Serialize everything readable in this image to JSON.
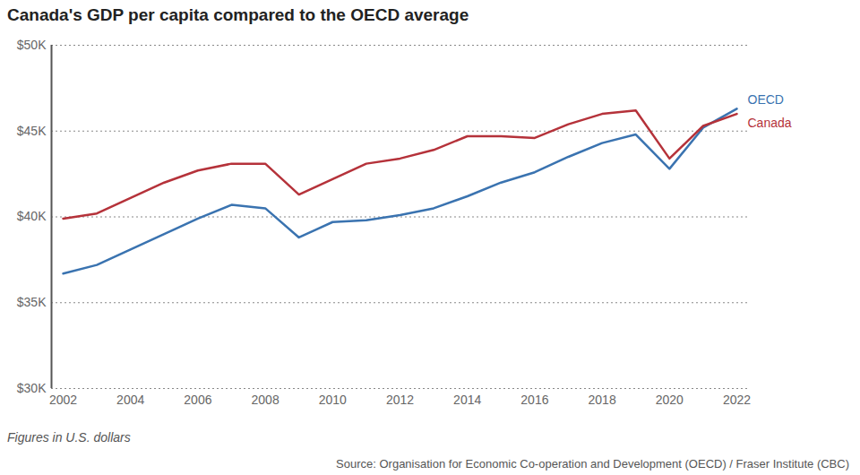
{
  "chart_data": {
    "type": "line",
    "title": "Canada's GDP per capita compared to the OECD average",
    "note": "Figures in U.S. dollars",
    "source": "Source: Organisation for Economic Co-operation and Development (OECD) / Fraser Institute (CBC)",
    "x": [
      2002,
      2003,
      2004,
      2005,
      2006,
      2007,
      2008,
      2009,
      2010,
      2011,
      2012,
      2013,
      2014,
      2015,
      2016,
      2017,
      2018,
      2019,
      2020,
      2021,
      2022
    ],
    "series": [
      {
        "name": "OECD",
        "color": "#3a73b0",
        "values": [
          36.7,
          37.2,
          38.1,
          39.0,
          39.9,
          40.7,
          40.5,
          38.8,
          39.7,
          39.8,
          40.1,
          40.5,
          41.2,
          42.0,
          42.6,
          43.5,
          44.3,
          44.8,
          42.8,
          45.2,
          46.3
        ]
      },
      {
        "name": "Canada",
        "color": "#b5323a",
        "values": [
          39.9,
          40.2,
          41.1,
          42.0,
          42.7,
          43.1,
          43.1,
          41.3,
          42.2,
          43.1,
          43.4,
          43.9,
          44.7,
          44.7,
          44.6,
          45.4,
          46.0,
          46.2,
          43.4,
          45.3,
          46.0
        ]
      }
    ],
    "xlim": [
      2002,
      2022
    ],
    "xticks": [
      2002,
      2004,
      2006,
      2008,
      2010,
      2012,
      2014,
      2016,
      2018,
      2020,
      2022
    ],
    "ylim": [
      30,
      50
    ],
    "yticks": [
      {
        "value": 30,
        "label": "$30K"
      },
      {
        "value": 35,
        "label": "$35K"
      },
      {
        "value": 40,
        "label": "$40K"
      },
      {
        "value": 45,
        "label": "$45K"
      },
      {
        "value": 50,
        "label": "$50K"
      }
    ],
    "grid": true
  }
}
